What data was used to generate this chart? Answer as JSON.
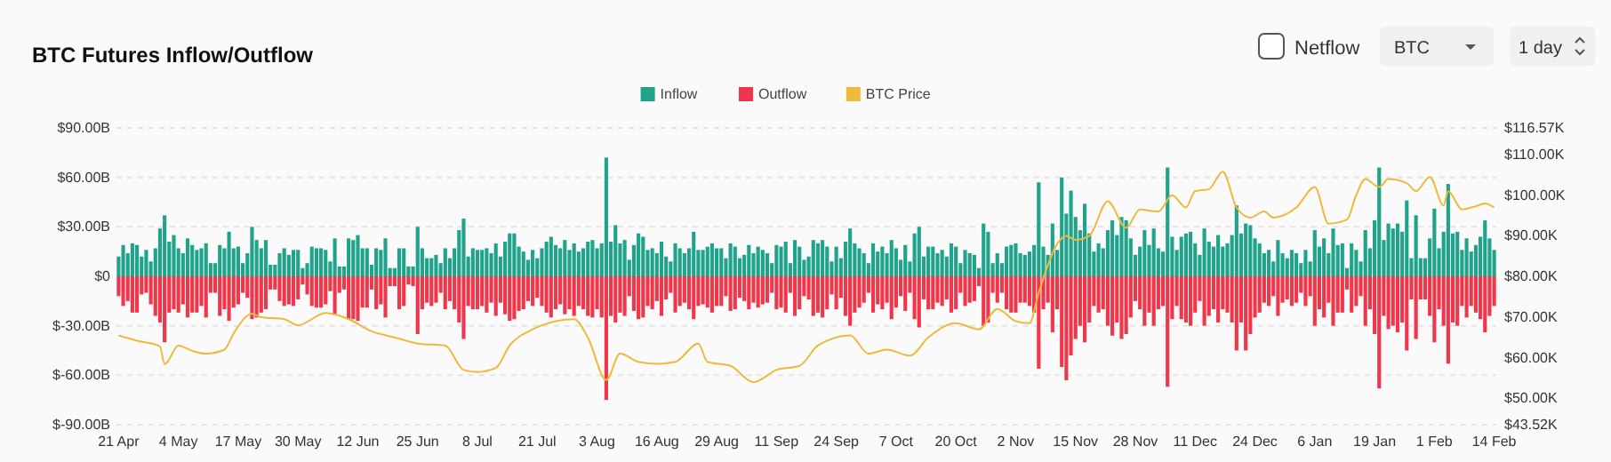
{
  "chart_data": {
    "type": "bar",
    "title": "BTC Futures Inflow/Outflow",
    "annotations": [
      "Netflow",
      "BTC",
      "1 day"
    ],
    "legend": "top",
    "grid": "y",
    "stacked": true,
    "categories": [
      "21 Apr",
      null,
      null,
      null,
      null,
      null,
      null,
      null,
      null,
      null,
      null,
      null,
      null,
      "4 May",
      null,
      null,
      null,
      null,
      null,
      null,
      null,
      null,
      null,
      null,
      null,
      null,
      "17 May",
      null,
      null,
      null,
      null,
      null,
      null,
      null,
      null,
      null,
      null,
      null,
      null,
      "30 May",
      null,
      null,
      null,
      null,
      null,
      null,
      null,
      null,
      null,
      null,
      null,
      null,
      "12 Jun",
      null,
      null,
      null,
      null,
      null,
      null,
      null,
      null,
      null,
      null,
      null,
      null,
      "25 Jun",
      null,
      null,
      null,
      null,
      null,
      null,
      null,
      null,
      null,
      null,
      null,
      null,
      "8 Jul",
      null,
      null,
      null,
      null,
      null,
      null,
      null,
      null,
      null,
      null,
      null,
      null,
      "21 Jul",
      null,
      null,
      null,
      null,
      null,
      null,
      null,
      null,
      null,
      null,
      null,
      null,
      "3 Aug",
      null,
      null,
      null,
      null,
      null,
      null,
      null,
      null,
      null,
      null,
      null,
      null,
      "16 Aug",
      null,
      null,
      null,
      null,
      null,
      null,
      null,
      null,
      null,
      null,
      null,
      null,
      "29 Aug",
      null,
      null,
      null,
      null,
      null,
      null,
      null,
      null,
      null,
      null,
      null,
      null,
      "11 Sep",
      null,
      null,
      null,
      null,
      null,
      null,
      null,
      null,
      null,
      null,
      null,
      null,
      "24 Sep",
      null,
      null,
      null,
      null,
      null,
      null,
      null,
      null,
      null,
      null,
      null,
      null,
      "7 Oct",
      null,
      null,
      null,
      null,
      null,
      null,
      null,
      null,
      null,
      null,
      null,
      null,
      "20 Oct",
      null,
      null,
      null,
      null,
      null,
      null,
      null,
      null,
      null,
      null,
      null,
      null,
      "2 Nov",
      null,
      null,
      null,
      null,
      null,
      null,
      null,
      null,
      null,
      null,
      null,
      null,
      "15 Nov",
      null,
      null,
      null,
      null,
      null,
      null,
      null,
      null,
      null,
      null,
      null,
      null,
      "28 Nov",
      null,
      null,
      null,
      null,
      null,
      null,
      null,
      null,
      null,
      null,
      null,
      null,
      "11 Dec",
      null,
      null,
      null,
      null,
      null,
      null,
      null,
      null,
      null,
      null,
      null,
      null,
      "24 Dec",
      null,
      null,
      null,
      null,
      null,
      null,
      null,
      null,
      null,
      null,
      null,
      null,
      "6 Jan",
      null,
      null,
      null,
      null,
      null,
      null,
      null,
      null,
      null,
      null,
      null,
      null,
      "19 Jan",
      null,
      null,
      null,
      null,
      null,
      null,
      null,
      null,
      null,
      null,
      null,
      null,
      "1 Feb",
      null,
      null,
      null,
      null,
      null,
      null,
      null,
      null,
      null,
      null,
      null,
      null,
      "14 Feb"
    ],
    "series": [
      {
        "name": "Inflow",
        "color": "#1fa38a",
        "values": [
          12,
          19,
          14,
          20,
          19,
          12,
          16,
          9,
          17,
          29,
          37,
          21,
          25,
          17,
          14,
          23,
          19,
          16,
          17,
          20,
          8,
          8,
          19,
          17,
          27,
          17,
          18,
          8,
          14,
          30,
          22,
          17,
          22,
          7,
          7,
          14,
          17,
          13,
          16,
          16,
          5,
          8,
          18,
          17,
          17,
          16,
          9,
          23,
          6,
          6,
          23,
          22,
          25,
          17,
          17,
          7,
          17,
          16,
          23,
          5,
          5,
          17,
          17,
          6,
          6,
          30,
          17,
          11,
          11,
          13,
          8,
          17,
          11,
          17,
          28,
          35,
          12,
          17,
          16,
          16,
          17,
          14,
          20,
          12,
          21,
          26,
          26,
          18,
          15,
          10,
          16,
          11,
          17,
          21,
          24,
          19,
          17,
          22,
          16,
          20,
          15,
          17,
          21,
          22,
          17,
          20,
          72,
          21,
          31,
          20,
          22,
          10,
          19,
          26,
          24,
          16,
          17,
          14,
          21,
          12,
          9,
          20,
          17,
          14,
          17,
          27,
          16,
          16,
          18,
          20,
          17,
          17,
          11,
          20,
          18,
          11,
          13,
          19,
          14,
          18,
          16,
          14,
          8,
          19,
          18,
          21,
          8,
          22,
          18,
          10,
          12,
          22,
          20,
          22,
          18,
          9,
          18,
          11,
          21,
          29,
          20,
          17,
          14,
          8,
          20,
          15,
          18,
          14,
          22,
          17,
          10,
          19,
          9,
          26,
          30,
          12,
          18,
          18,
          14,
          16,
          12,
          20,
          18,
          8,
          16,
          14,
          13,
          5,
          32,
          27,
          8,
          14,
          8,
          18,
          19,
          20,
          14,
          13,
          15,
          19,
          57,
          18,
          13,
          32,
          16,
          60,
          38,
          52,
          36,
          28,
          44,
          26,
          15,
          20,
          17,
          28,
          34,
          25,
          36,
          34,
          23,
          13,
          18,
          28,
          19,
          29,
          17,
          15,
          66,
          24,
          16,
          24,
          26,
          27,
          20,
          13,
          29,
          21,
          18,
          25,
          18,
          20,
          25,
          43,
          26,
          32,
          31,
          23,
          20,
          14,
          16,
          9,
          22,
          14,
          11,
          16,
          14,
          8,
          16,
          9,
          28,
          18,
          23,
          14,
          29,
          19,
          20,
          5,
          20,
          16,
          9,
          28,
          17,
          34,
          66,
          22,
          32,
          29,
          32,
          27,
          46,
          11,
          37,
          11,
          11,
          23,
          41,
          17,
          27,
          56,
          26,
          27,
          16,
          23,
          15,
          19,
          24,
          34,
          23,
          16
        ]
      },
      {
        "name": "Outflow",
        "color": "#f0364a",
        "values": [
          -12,
          -18,
          -15,
          -22,
          -22,
          -11,
          -10,
          -17,
          -24,
          -28,
          -40,
          -22,
          -20,
          -22,
          -17,
          -25,
          -22,
          -22,
          -18,
          -25,
          -10,
          -10,
          -24,
          -20,
          -27,
          -19,
          -17,
          -10,
          -13,
          -26,
          -25,
          -22,
          -20,
          -8,
          -8,
          -15,
          -18,
          -17,
          -18,
          -14,
          -5,
          -11,
          -18,
          -19,
          -19,
          -17,
          -9,
          -23,
          -10,
          -8,
          -26,
          -26,
          -27,
          -19,
          -19,
          -8,
          -20,
          -17,
          -25,
          -6,
          -6,
          -20,
          -18,
          -5,
          -6,
          -35,
          -20,
          -16,
          -18,
          -16,
          -10,
          -20,
          -15,
          -20,
          -28,
          -38,
          -18,
          -20,
          -20,
          -18,
          -22,
          -16,
          -24,
          -16,
          -23,
          -27,
          -26,
          -21,
          -20,
          -15,
          -18,
          -13,
          -18,
          -22,
          -25,
          -20,
          -17,
          -23,
          -20,
          -24,
          -18,
          -20,
          -24,
          -25,
          -20,
          -25,
          -75,
          -24,
          -28,
          -22,
          -24,
          -12,
          -21,
          -26,
          -25,
          -18,
          -20,
          -15,
          -24,
          -14,
          -10,
          -22,
          -18,
          -16,
          -20,
          -26,
          -18,
          -17,
          -19,
          -22,
          -18,
          -18,
          -12,
          -21,
          -20,
          -13,
          -15,
          -20,
          -16,
          -19,
          -17,
          -16,
          -10,
          -20,
          -19,
          -22,
          -10,
          -24,
          -20,
          -12,
          -14,
          -24,
          -22,
          -25,
          -20,
          -11,
          -20,
          -13,
          -24,
          -30,
          -22,
          -19,
          -16,
          -10,
          -22,
          -17,
          -20,
          -16,
          -26,
          -19,
          -12,
          -21,
          -10,
          -26,
          -31,
          -14,
          -20,
          -20,
          -16,
          -18,
          -14,
          -22,
          -20,
          -10,
          -18,
          -16,
          -15,
          -6,
          -30,
          -28,
          -10,
          -16,
          -10,
          -20,
          -22,
          -22,
          -16,
          -16,
          -18,
          -22,
          -56,
          -20,
          -16,
          -34,
          -20,
          -55,
          -63,
          -48,
          -38,
          -30,
          -40,
          -28,
          -18,
          -22,
          -20,
          -30,
          -36,
          -28,
          -38,
          -35,
          -25,
          -15,
          -20,
          -30,
          -22,
          -30,
          -20,
          -18,
          -67,
          -26,
          -18,
          -26,
          -28,
          -30,
          -22,
          -15,
          -30,
          -24,
          -20,
          -28,
          -20,
          -22,
          -28,
          -45,
          -28,
          -45,
          -35,
          -25,
          -22,
          -16,
          -18,
          -12,
          -24,
          -16,
          -14,
          -18,
          -16,
          -10,
          -18,
          -12,
          -30,
          -20,
          -25,
          -16,
          -30,
          -22,
          -22,
          -8,
          -22,
          -18,
          -12,
          -30,
          -20,
          -35,
          -68,
          -24,
          -32,
          -30,
          -34,
          -28,
          -45,
          -14,
          -38,
          -14,
          -14,
          -24,
          -40,
          -20,
          -30,
          -53,
          -28,
          -30,
          -18,
          -25,
          -18,
          -22,
          -26,
          -34,
          -24,
          -18
        ]
      },
      {
        "name": "BTC Price",
        "type": "line",
        "axis": "y2",
        "color": "#efb93c",
        "values": [
          65.5,
          null,
          null,
          null,
          64.2,
          null,
          null,
          null,
          null,
          62.8,
          58.4,
          null,
          null,
          63,
          null,
          null,
          61.7,
          null,
          null,
          61,
          null,
          null,
          null,
          62,
          null,
          66,
          null,
          null,
          null,
          70.8,
          null,
          70,
          null,
          null,
          null,
          null,
          69.5,
          null,
          null,
          68,
          null,
          null,
          null,
          null,
          null,
          71,
          null,
          null,
          null,
          null,
          69.5,
          null,
          null,
          null,
          null,
          66.5,
          null,
          null,
          null,
          null,
          65,
          null,
          null,
          null,
          null,
          63.5,
          null,
          null,
          null,
          null,
          null,
          63,
          null,
          null,
          null,
          57,
          null,
          null,
          56.5,
          null,
          null,
          null,
          57.5,
          null,
          null,
          63,
          null,
          null,
          null,
          null,
          67,
          null,
          68,
          null,
          null,
          null,
          null,
          null,
          null,
          69.5,
          null,
          null,
          65,
          null,
          null,
          null,
          54.5,
          null,
          null,
          61,
          null,
          null,
          null,
          59,
          null,
          null,
          null,
          58.5,
          null,
          null,
          null,
          59,
          null,
          null,
          null,
          null,
          63.5,
          null,
          59,
          null,
          null,
          null,
          null,
          58,
          null,
          null,
          null,
          null,
          54,
          null,
          null,
          null,
          null,
          57,
          null,
          null,
          null,
          null,
          58,
          null,
          null,
          null,
          63,
          null,
          null,
          null,
          null,
          null,
          null,
          65.5,
          null,
          null,
          null,
          61,
          null,
          null,
          null,
          62,
          null,
          null,
          null,
          null,
          60.5,
          null,
          null,
          null,
          65,
          null,
          null,
          null,
          null,
          null,
          68.5,
          null,
          null,
          null,
          null,
          67,
          null,
          null,
          null,
          72,
          null,
          null,
          null,
          69,
          null,
          null,
          68.5,
          null,
          76,
          null,
          null,
          null,
          88,
          null,
          90,
          null,
          89,
          null,
          null,
          90,
          null,
          null,
          null,
          98.5,
          null,
          null,
          null,
          92,
          null,
          null,
          96.5,
          null,
          null,
          null,
          96,
          null,
          null,
          100,
          null,
          null,
          97,
          null,
          101,
          null,
          null,
          101.5,
          null,
          null,
          105.8,
          null,
          null,
          97,
          null,
          null,
          94.5,
          null,
          null,
          96,
          null,
          94.5,
          null,
          null,
          null,
          null,
          97,
          null,
          null,
          null,
          102,
          null,
          null,
          93,
          null,
          null,
          null,
          94,
          null,
          100,
          null,
          104,
          null,
          null,
          102,
          null,
          104,
          null,
          null,
          null,
          103,
          null,
          101,
          null,
          null,
          104.5,
          null,
          null,
          97.5,
          101,
          null,
          null,
          96.5,
          null,
          null,
          97.3,
          null,
          98,
          null,
          97
        ]
      }
    ],
    "ylim": [
      -90,
      90
    ],
    "yticks": [
      {
        "value": -90,
        "label": "$-90.00B"
      },
      {
        "value": -60,
        "label": "$-60.00B"
      },
      {
        "value": -30,
        "label": "$-30.00B"
      },
      {
        "value": 0,
        "label": "$0"
      },
      {
        "value": 30,
        "label": "$30.00B"
      },
      {
        "value": 60,
        "label": "$60.00B"
      },
      {
        "value": 90,
        "label": "$90.00B"
      }
    ],
    "y2lim": [
      43.52,
      116.57
    ],
    "y2ticks": [
      {
        "value": 43.52,
        "label": "$43.52K"
      },
      {
        "value": 50,
        "label": "$50.00K"
      },
      {
        "value": 60,
        "label": "$60.00K"
      },
      {
        "value": 70,
        "label": "$70.00K"
      },
      {
        "value": 80,
        "label": "$80.00K"
      },
      {
        "value": 90,
        "label": "$90.00K"
      },
      {
        "value": 100,
        "label": "$100.00K"
      },
      {
        "value": 110,
        "label": "$110.00K"
      },
      {
        "value": 116.57,
        "label": "$116.57K"
      }
    ]
  }
}
